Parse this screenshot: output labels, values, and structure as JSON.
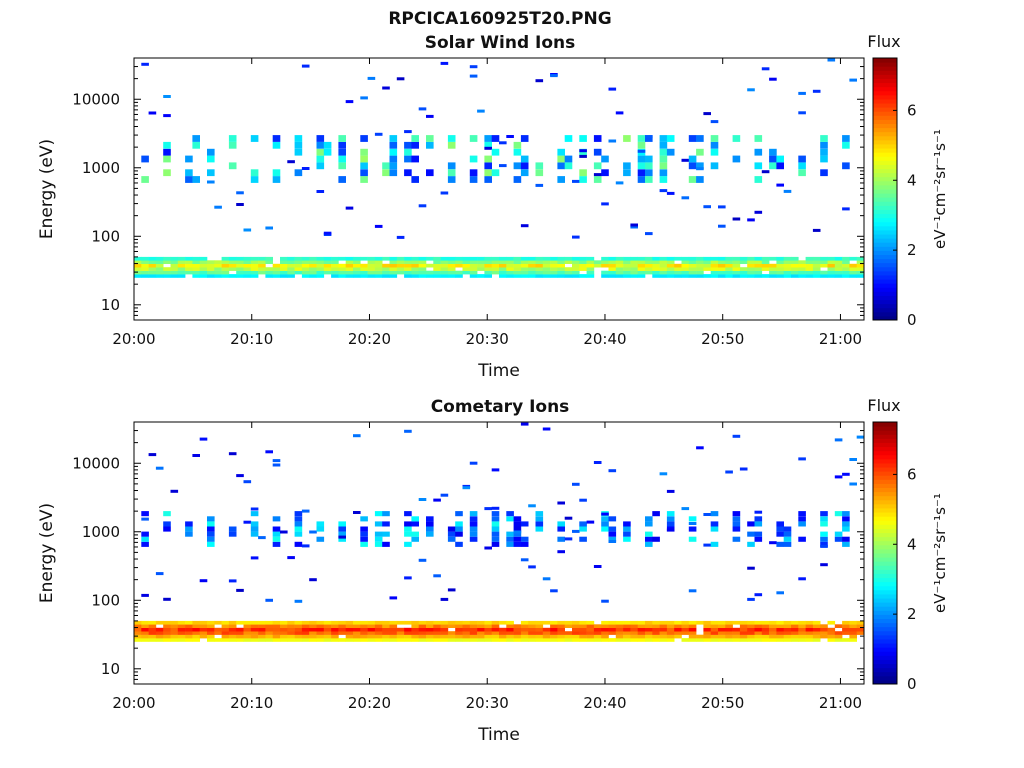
{
  "figure_title": "RPCICA160925T20.PNG",
  "colorbar": {
    "label": "Flux",
    "unit_label": "eV⁻¹cm⁻²sr⁻¹s⁻¹",
    "ticks": [
      "0",
      "2",
      "4",
      "6"
    ],
    "range": [
      0,
      7.5
    ],
    "colormap": "jet"
  },
  "chart_data": [
    {
      "type": "heatmap",
      "title": "Solar Wind Ions",
      "xlabel": "Time",
      "ylabel": "Energy (eV)",
      "x_ticks": [
        "20:00",
        "20:10",
        "20:20",
        "20:30",
        "20:40",
        "20:50",
        "21:00"
      ],
      "y_ticks": [
        "10",
        "100",
        "1000",
        "10000"
      ],
      "y_scale": "log",
      "x_range": [
        "20:00",
        "21:02"
      ],
      "y_range": [
        6,
        40000
      ],
      "features": {
        "low_energy_band": {
          "energy_eV": [
            25,
            50
          ],
          "flux_range": [
            2,
            5
          ]
        },
        "burst_band": {
          "energy_eV": [
            600,
            3000
          ],
          "flux_range": [
            1,
            4
          ]
        },
        "sparse_background": {
          "energy_eV": [
            100,
            40000
          ],
          "flux_range": [
            0.5,
            2
          ]
        }
      }
    },
    {
      "type": "heatmap",
      "title": "Cometary Ions",
      "xlabel": "Time",
      "ylabel": "Energy (eV)",
      "x_ticks": [
        "20:00",
        "20:10",
        "20:20",
        "20:30",
        "20:40",
        "20:50",
        "21:00"
      ],
      "y_ticks": [
        "10",
        "100",
        "1000",
        "10000"
      ],
      "y_scale": "log",
      "x_range": [
        "20:00",
        "21:02"
      ],
      "y_range": [
        6,
        40000
      ],
      "features": {
        "low_energy_band": {
          "energy_eV": [
            25,
            50
          ],
          "flux_range": [
            4,
            6.5
          ]
        },
        "burst_band": {
          "energy_eV": [
            600,
            2000
          ],
          "flux_range": [
            0.8,
            3
          ]
        },
        "sparse_background": {
          "energy_eV": [
            100,
            40000
          ],
          "flux_range": [
            0.5,
            2
          ]
        }
      }
    }
  ]
}
